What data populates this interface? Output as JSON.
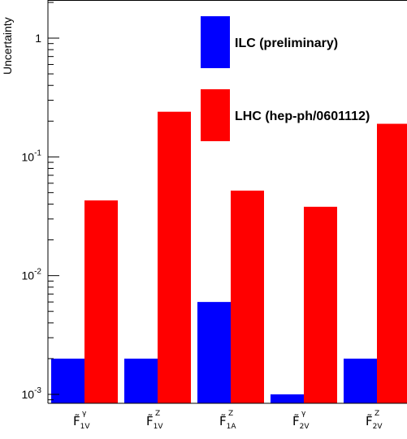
{
  "chart_data": {
    "type": "bar",
    "ylabel": "Uncertainty",
    "yscale": "log",
    "ylim": [
      0.0009,
      2
    ],
    "yticks": [
      {
        "value": 1,
        "base": "1",
        "exp": ""
      },
      {
        "value": 0.1,
        "base": "10",
        "exp": "-1"
      },
      {
        "value": 0.01,
        "base": "10",
        "exp": "-2"
      },
      {
        "value": 0.001,
        "base": "10",
        "exp": "-3"
      }
    ],
    "categories": [
      {
        "base": "F̃",
        "sub": "1V",
        "sup": "γ"
      },
      {
        "base": "F̃",
        "sub": "1V",
        "sup": "Z"
      },
      {
        "base": "F̃",
        "sub": "1A",
        "sup": "Z"
      },
      {
        "base": "F̃",
        "sub": "2V",
        "sup": "γ"
      },
      {
        "base": "F̃",
        "sub": "2V",
        "sup": "Z"
      }
    ],
    "series": [
      {
        "name": "ILC (preliminary)",
        "color": "#0000ff",
        "values": [
          0.002,
          0.002,
          0.006,
          0.001,
          0.002
        ]
      },
      {
        "name": "LHC (hep-ph/0601112)",
        "color": "#ff0000",
        "values": [
          0.043,
          0.24,
          0.052,
          0.038,
          0.19
        ]
      }
    ],
    "grid": false,
    "legend_position": "top-right"
  }
}
